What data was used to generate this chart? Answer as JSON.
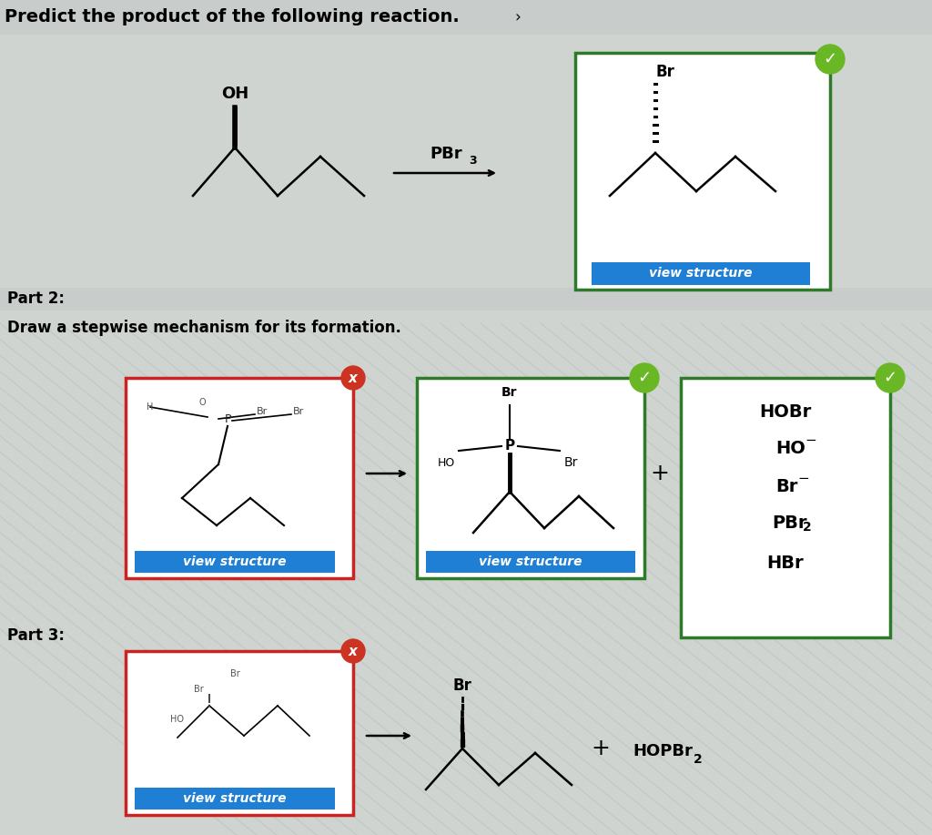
{
  "bg_color": "#cfd4d0",
  "title": "Predict the product of the following reaction.",
  "title_arrow": "›",
  "part2_label": "Part 2:",
  "part3_label": "Part 3:",
  "draw_mechanism_label": "Draw a stepwise mechanism for its formation.",
  "view_structure_text": "view structure",
  "view_structure_bg": "#1e7fd4",
  "view_structure_text_color": "#ffffff",
  "header_bg": "#c8ccca",
  "white": "#ffffff",
  "green_border": "#2d7a28",
  "red_border": "#cc2222",
  "check_color": "#6ab726",
  "x_color": "#cc3322",
  "options_list": [
    "HOBr",
    "HO",
    "Br",
    "PBr2",
    "HBr"
  ],
  "hopbr2_text": "HOPBr",
  "pbr3_text": "PBr",
  "diagonal_color": "#b8c4bc",
  "panel_texture_color": "#c0ccc4"
}
